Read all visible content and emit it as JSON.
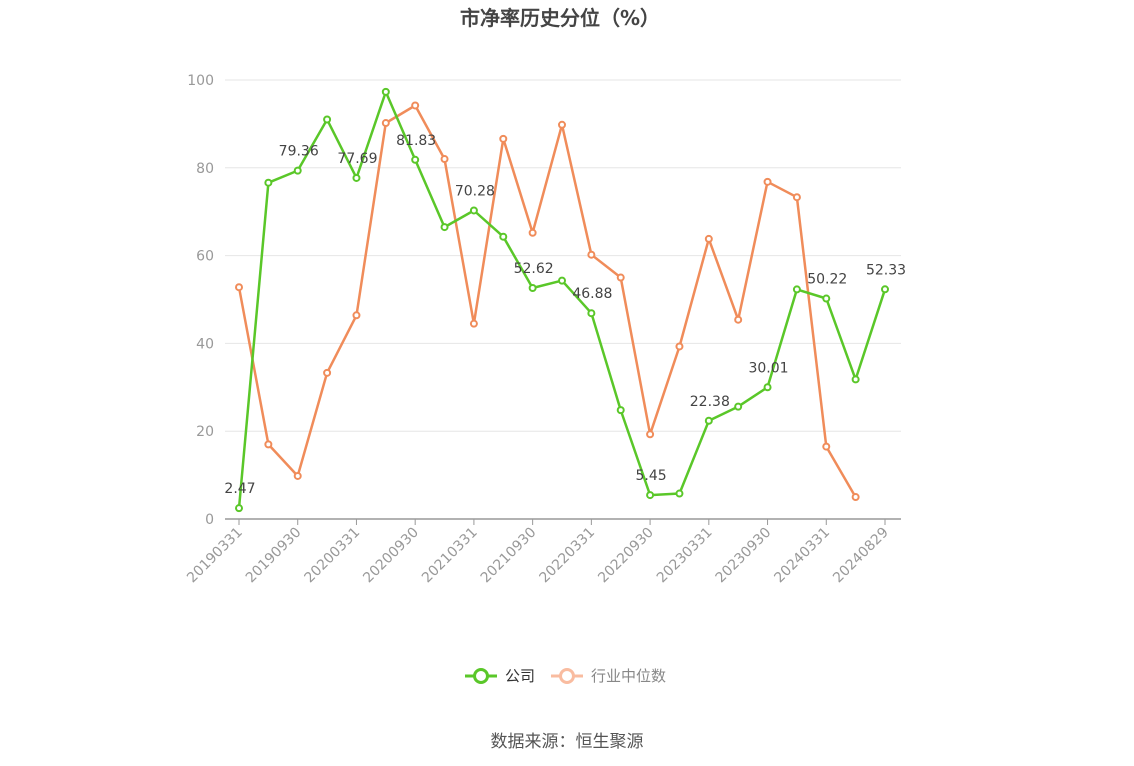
{
  "chart_data": {
    "type": "line",
    "title": "市净率历史分位（%）",
    "x": [
      "20190331",
      "20190630",
      "20190930",
      "20191231",
      "20200331",
      "20200630",
      "20200930",
      "20201231",
      "20210331",
      "20210630",
      "20210930",
      "20211231",
      "20220331",
      "20220630",
      "20220930",
      "20221231",
      "20230331",
      "20230630",
      "20230930",
      "20231231",
      "20240331",
      "20240630",
      "20240829"
    ],
    "x_tick_labels": [
      "20190331",
      "20190930",
      "20200331",
      "20200930",
      "20210331",
      "20210930",
      "20220331",
      "20220930",
      "20230331",
      "20230930",
      "20240331",
      "20240829"
    ],
    "ylim": [
      0,
      100
    ],
    "y_ticks": [
      0,
      20,
      40,
      60,
      80,
      100
    ],
    "grid": true,
    "legend_position": "bottom-center",
    "series": [
      {
        "name": "公司",
        "color": "#5ac729",
        "values": [
          2.47,
          76.6,
          79.36,
          91.0,
          77.69,
          97.3,
          81.83,
          66.5,
          70.28,
          64.3,
          52.62,
          54.3,
          46.88,
          24.8,
          5.45,
          5.8,
          22.38,
          25.6,
          30.01,
          52.3,
          50.22,
          31.8,
          52.33
        ],
        "labels": {
          "0": "2.47",
          "2": "79.36",
          "4": "77.69",
          "6": "81.83",
          "8": "70.28",
          "10": "52.62",
          "12": "46.88",
          "14": "5.45",
          "16": "22.38",
          "18": "30.01",
          "20": "50.22",
          "22": "52.33"
        }
      },
      {
        "name": "行业中位数",
        "color": "#f08c5a",
        "legend_color": "#f9bca0",
        "values": [
          52.8,
          17.0,
          9.8,
          33.3,
          46.4,
          90.2,
          94.2,
          82.0,
          44.5,
          86.6,
          65.2,
          89.8,
          60.2,
          55.0,
          19.3,
          39.3,
          63.8,
          45.4,
          76.8,
          73.3,
          16.5,
          5.0,
          null
        ]
      }
    ]
  },
  "footer": {
    "source": "数据来源：恒生聚源"
  }
}
